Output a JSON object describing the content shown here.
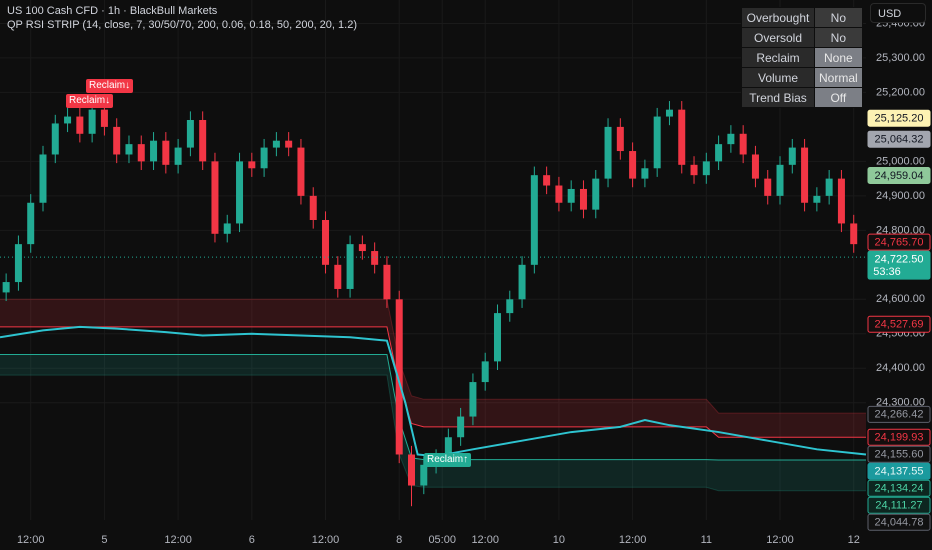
{
  "header": {
    "symbol": "US 100 Cash CFD · 1h · BlackBull Markets",
    "indicator": "QP RSI STRIP (14, close, 7, 30/50/70, 200, 0.06, 0.18, 50, 200, 20, 1.2)",
    "currency": "USD"
  },
  "status_table": {
    "rows": [
      [
        "Overbought",
        "No"
      ],
      [
        "Oversold",
        "No"
      ],
      [
        "Reclaim",
        "None"
      ],
      [
        "Volume",
        "Normal"
      ],
      [
        "Trend Bias",
        "Off"
      ]
    ]
  },
  "signals": [
    "Reclaim↓",
    "Reclaim↓",
    "Reclaim↑"
  ],
  "chart_data": {
    "type": "candlestick",
    "up_color": "#22ab94",
    "down_color": "#f23645",
    "grid": true,
    "xlim": [
      -0.5,
      70
    ],
    "ylim": [
      23960,
      25468
    ],
    "xticks": [
      {
        "value": 2,
        "label": "12:00"
      },
      {
        "value": 8,
        "label": "5"
      },
      {
        "value": 14,
        "label": "12:00"
      },
      {
        "value": 20,
        "label": "6"
      },
      {
        "value": 26,
        "label": "12:00"
      },
      {
        "value": 32,
        "label": "8"
      },
      {
        "value": 35.5,
        "label": "05:00"
      },
      {
        "value": 39,
        "label": "12:00"
      },
      {
        "value": 45,
        "label": "10"
      },
      {
        "value": 51,
        "label": "12:00"
      },
      {
        "value": 57,
        "label": "11"
      },
      {
        "value": 63,
        "label": "12:00"
      },
      {
        "value": 69,
        "label": "12"
      }
    ],
    "yticks": [
      {
        "value": 25400,
        "label": "25,400.00"
      },
      {
        "value": 25300,
        "label": "25,300.00"
      },
      {
        "value": 25200,
        "label": "25,200.00"
      },
      {
        "value": 25000,
        "label": "25,000.00"
      },
      {
        "value": 24900,
        "label": "24,900.00"
      },
      {
        "value": 24800,
        "label": "24,800.00"
      },
      {
        "value": 24600,
        "label": "24,600.00"
      },
      {
        "value": 24500,
        "label": "24,500.00"
      },
      {
        "value": 24400,
        "label": "24,400.00"
      },
      {
        "value": 24300,
        "label": "24,300.00"
      }
    ],
    "open": [
      24620,
      24650,
      24760,
      24880,
      25020,
      25110,
      25130,
      25080,
      25150,
      25100,
      25020,
      25050,
      25000,
      25060,
      24990,
      25040,
      25120,
      25000,
      24790,
      24820,
      25000,
      24980,
      25040,
      25060,
      25040,
      24900,
      24830,
      24700,
      24630,
      24760,
      24740,
      24700,
      24600,
      24150,
      24060,
      24120,
      24140,
      24200,
      24260,
      24360,
      24420,
      24560,
      24600,
      24700,
      24960,
      24930,
      24880,
      24920,
      24860,
      24950,
      25100,
      25030,
      24950,
      24980,
      25130,
      25150,
      24990,
      24960,
      25000,
      25050,
      25080,
      25020,
      24950,
      24900,
      24990,
      25040,
      24880,
      24900,
      24950,
      24820
    ],
    "high": [
      24675,
      24785,
      24905,
      25045,
      25135,
      25165,
      25155,
      25175,
      25175,
      25125,
      25075,
      25075,
      25085,
      25085,
      25065,
      25145,
      25145,
      25025,
      24845,
      25025,
      25025,
      25065,
      25085,
      25085,
      25065,
      24925,
      24855,
      24725,
      24785,
      24785,
      24765,
      24725,
      24625,
      24175,
      24145,
      24165,
      24225,
      24285,
      24385,
      24445,
      24585,
      24625,
      24725,
      24985,
      24985,
      24955,
      24945,
      24945,
      24975,
      25125,
      25125,
      25055,
      25005,
      25155,
      25175,
      25175,
      25015,
      25025,
      25075,
      25105,
      25105,
      25045,
      24975,
      25015,
      25065,
      25065,
      24925,
      24975,
      24975,
      24845
    ],
    "low": [
      24595,
      24625,
      24735,
      24855,
      24995,
      25085,
      25055,
      25055,
      25075,
      24995,
      24995,
      24975,
      24975,
      24965,
      24965,
      25015,
      24975,
      24765,
      24765,
      24795,
      24955,
      24955,
      25015,
      25015,
      24875,
      24805,
      24675,
      24605,
      24605,
      24715,
      24675,
      24575,
      24125,
      24000,
      24035,
      24095,
      24115,
      24175,
      24235,
      24335,
      24395,
      24535,
      24575,
      24675,
      24905,
      24855,
      24855,
      24835,
      24835,
      24925,
      25005,
      24925,
      24925,
      24955,
      25105,
      24965,
      24935,
      24935,
      24975,
      25025,
      24995,
      24925,
      24875,
      24875,
      24965,
      24855,
      24855,
      24875,
      24795,
      24735
    ],
    "close": [
      24650,
      24760,
      24880,
      25020,
      25110,
      25130,
      25080,
      25150,
      25100,
      25020,
      25050,
      25000,
      25060,
      24990,
      25040,
      25120,
      25000,
      24790,
      24820,
      25000,
      24980,
      25040,
      25060,
      25040,
      24900,
      24830,
      24700,
      24630,
      24760,
      24740,
      24700,
      24600,
      24150,
      24060,
      24120,
      24140,
      24200,
      24260,
      24360,
      24420,
      24560,
      24600,
      24700,
      24960,
      24930,
      24880,
      24920,
      24860,
      24950,
      25100,
      25030,
      24950,
      24980,
      25130,
      25150,
      24990,
      24960,
      25000,
      25050,
      25080,
      25020,
      24950,
      24900,
      24990,
      25040,
      24880,
      24900,
      24950,
      24820,
      24760
    ],
    "rsi_strip": {
      "x": [
        -0.5,
        31,
        32,
        33,
        34,
        57,
        58,
        70
      ],
      "upper_band_top": [
        24600,
        24600,
        24420,
        24320,
        24310,
        24310,
        24270,
        24270
      ],
      "upper_line": [
        24520,
        24520,
        24350,
        24240,
        24230,
        24230,
        24200,
        24200
      ],
      "lower_line": [
        24440,
        24440,
        24250,
        24140,
        24135,
        24135,
        24134,
        24134
      ],
      "lower_band_bottom": [
        24380,
        24380,
        24150,
        24060,
        24055,
        24055,
        24045,
        24045
      ],
      "upper_color": "#f23645",
      "lower_color": "#22ab94"
    },
    "rsi": {
      "x": [
        -0.5,
        3,
        6,
        9,
        13,
        16,
        20,
        24,
        28,
        31,
        32.5,
        33.5,
        35,
        38,
        42,
        46,
        50,
        52,
        54,
        58,
        62,
        66,
        70
      ],
      "values": [
        24490,
        24510,
        24520,
        24515,
        24505,
        24495,
        24500,
        24495,
        24490,
        24480,
        24300,
        24150,
        24145,
        24165,
        24190,
        24215,
        24230,
        24250,
        24235,
        24215,
        24190,
        24165,
        24150
      ],
      "color": "#2ec4d0"
    },
    "price_labels": [
      {
        "value": 25125.2,
        "label": "25,125.20",
        "bg": "#fdf2b3",
        "fg": "#131722",
        "border": "#fdf2b3"
      },
      {
        "value": 25064.32,
        "label": "25,064.32",
        "bg": "#a3a6af",
        "fg": "#131722",
        "border": "#a3a6af"
      },
      {
        "value": 24959.04,
        "label": "24,959.04",
        "bg": "#8fc99a",
        "fg": "#131722",
        "border": "#8fc99a"
      },
      {
        "value": 24765.7,
        "label": "24,765.70",
        "bg": "#140e0e",
        "fg": "#f23645",
        "border": "#f23645"
      },
      {
        "value": 24722.5,
        "label": "24,722.50",
        "countdown": "53:36",
        "bg": "#22ab94",
        "fg": "#ffffff",
        "border": "#22ab94"
      },
      {
        "value": 24527.69,
        "label": "24,527.69",
        "bg": "#140e0e",
        "fg": "#f23645",
        "border": "#f23645"
      },
      {
        "value": 24266.42,
        "label": "24,266.42",
        "bg": "#111111",
        "fg": "#9598a1",
        "border": "#5d606b"
      },
      {
        "value": 24199.93,
        "label": "24,199.93",
        "bg": "#140e0e",
        "fg": "#f23645",
        "border": "#f23645"
      },
      {
        "value": 24155.6,
        "label": "24,155.60",
        "bg": "#111111",
        "fg": "#9598a1",
        "border": "#5d606b"
      },
      {
        "value": 24137.55,
        "label": "24,137.55",
        "bg": "#1b9a9e",
        "fg": "#e6f7f7",
        "border": "#1b9a9e"
      },
      {
        "value": 24134.24,
        "label": "24,134.24",
        "bg": "#0d2620",
        "fg": "#4cd3a5",
        "border": "#22ab94"
      },
      {
        "value": 24111.27,
        "label": "24,111.27",
        "bg": "#0d2620",
        "fg": "#4cd3a5",
        "border": "#22ab94"
      },
      {
        "value": 24044.78,
        "label": "24,044.78",
        "bg": "#111111",
        "fg": "#9598a1",
        "border": "#5d606b"
      }
    ]
  }
}
